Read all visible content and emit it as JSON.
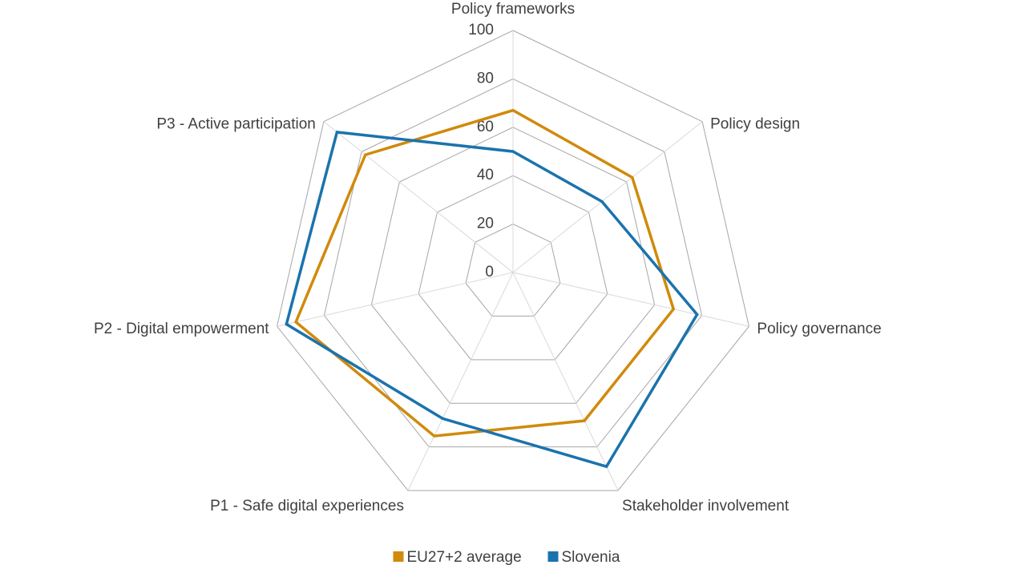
{
  "chart_data": {
    "type": "radar",
    "categories": [
      "Policy frameworks",
      "Policy design",
      "Policy governance",
      "Stakeholder involvement",
      "P1 - Safe digital experiences",
      "P2 - Digital empowerment",
      "P3 - Active participation"
    ],
    "series": [
      {
        "name": "EU27+2 average",
        "color": "#d08a0c",
        "values": [
          67,
          63,
          68,
          68,
          75,
          92,
          78
        ]
      },
      {
        "name": "Slovenia",
        "color": "#1a73ad",
        "values": [
          50,
          47,
          78,
          89,
          67,
          96,
          93
        ]
      }
    ],
    "ylim": [
      0,
      100
    ],
    "yticks": [
      0,
      20,
      40,
      60,
      80,
      100
    ],
    "grid": true,
    "legend": "bottom"
  }
}
